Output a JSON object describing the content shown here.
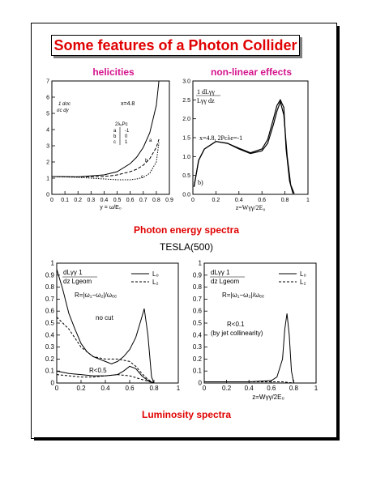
{
  "title": "Some features of a Photon Collider",
  "sections": {
    "helicities": "helicities",
    "nonlinear": "non-linear effects",
    "photon_spectra": "Photon energy spectra",
    "luminosity_spectra": "Luminosity spectra"
  },
  "tesla": "TESLA(500)",
  "colors": {
    "title": "#e00000",
    "section": "#d4148c",
    "caption": "#e00000"
  },
  "chart_data": [
    {
      "type": "line",
      "xlabel": "y = ω/E₀",
      "ylabel": "1/σc dσc/dy",
      "xlim": [
        0,
        0.9
      ],
      "ylim": [
        0,
        7
      ],
      "xticks": [
        "0",
        "0.1",
        "0.2",
        "0.3",
        "0.4",
        "0.5",
        "0.6",
        "0.7",
        "0.8",
        "0.9"
      ],
      "yticks": [
        "0",
        "1",
        "2",
        "3",
        "4",
        "5",
        "6",
        "7"
      ],
      "annotation": "x=4.8",
      "legend_header": "2λₑPc",
      "legend_rows": [
        [
          "a",
          "-1"
        ],
        [
          "b",
          "0"
        ],
        [
          "c",
          "1"
        ]
      ],
      "series": [
        {
          "name": "a",
          "x": [
            0,
            0.2,
            0.4,
            0.5,
            0.6,
            0.65,
            0.7,
            0.75,
            0.8,
            0.82
          ],
          "y": [
            1.1,
            1.08,
            1.2,
            1.4,
            1.9,
            2.3,
            2.9,
            3.8,
            5.5,
            7.0
          ]
        },
        {
          "name": "b",
          "x": [
            0,
            0.2,
            0.4,
            0.5,
            0.6,
            0.65,
            0.7,
            0.75,
            0.8,
            0.82
          ],
          "y": [
            1.1,
            1.08,
            1.1,
            1.2,
            1.4,
            1.55,
            1.8,
            2.2,
            2.9,
            3.4
          ]
        },
        {
          "name": "c",
          "x": [
            0,
            0.2,
            0.4,
            0.5,
            0.6,
            0.65,
            0.7,
            0.75,
            0.8,
            0.82
          ],
          "y": [
            1.1,
            1.05,
            0.95,
            0.9,
            0.9,
            0.95,
            1.05,
            1.3,
            2.0,
            3.2
          ]
        }
      ]
    },
    {
      "type": "line",
      "xlabel": "z=Wγγ/2E₀",
      "ylabel": "1/Lγγ dLγγ/dz",
      "xlim": [
        0,
        1
      ],
      "ylim": [
        0,
        3
      ],
      "xticks": [
        "0",
        "0.2",
        "0.4",
        "0.6",
        "0.8",
        "1"
      ],
      "yticks": [
        "0.0",
        "0.5",
        "1.0",
        "1.5",
        "2.0",
        "2.5",
        "3.0"
      ],
      "annotation": "x=4.8, 2Pcλe=-1",
      "panel_label": "b)",
      "series": [
        {
          "x": [
            0.01,
            0.05,
            0.1,
            0.2,
            0.3,
            0.4,
            0.5,
            0.6,
            0.65,
            0.7,
            0.73,
            0.76,
            0.79,
            0.82,
            0.85,
            0.88
          ],
          "y": [
            0.2,
            0.9,
            1.2,
            1.4,
            1.35,
            1.2,
            1.08,
            1.15,
            1.35,
            1.85,
            2.2,
            2.45,
            2.1,
            1.0,
            0.25,
            0.02
          ]
        },
        {
          "x": [
            0.01,
            0.05,
            0.1,
            0.2,
            0.3,
            0.4,
            0.5,
            0.6,
            0.65,
            0.7,
            0.73,
            0.76,
            0.79,
            0.81,
            0.84,
            0.87
          ],
          "y": [
            0.2,
            0.9,
            1.2,
            1.4,
            1.35,
            1.22,
            1.1,
            1.2,
            1.45,
            2.0,
            2.35,
            2.5,
            2.3,
            1.2,
            0.35,
            0.02
          ]
        }
      ]
    },
    {
      "type": "line",
      "xlim": [
        0,
        1
      ],
      "ylim": [
        0,
        1
      ],
      "xticks": [
        "0",
        "0.2",
        "0.4",
        "0.6",
        "0.8",
        "1"
      ],
      "yticks": [
        "0",
        "0.1",
        "0.2",
        "0.3",
        "0.4",
        "0.5",
        "0.6",
        "0.7",
        "0.8",
        "0.9",
        "1"
      ],
      "ylabel": "dLγγ/dz · 1/Lgeom",
      "legend": [
        "L₀",
        "L₂"
      ],
      "r_def": "R=|ω₁−ω₂|/ωₑₑ",
      "annotations": [
        "no cut",
        "R<0.5"
      ],
      "series": [
        {
          "name": "L₀ no cut",
          "x": [
            0,
            0.05,
            0.1,
            0.15,
            0.2,
            0.25,
            0.3,
            0.35,
            0.4,
            0.45,
            0.5,
            0.55,
            0.6,
            0.65,
            0.7,
            0.72,
            0.75,
            0.78,
            0.8
          ],
          "y": [
            0.95,
            0.78,
            0.58,
            0.45,
            0.33,
            0.26,
            0.22,
            0.2,
            0.18,
            0.16,
            0.18,
            0.22,
            0.28,
            0.38,
            0.55,
            0.62,
            0.4,
            0.05,
            0.0
          ]
        },
        {
          "name": "L₂ no cut",
          "x": [
            0,
            0.1,
            0.2,
            0.3,
            0.4,
            0.5,
            0.6,
            0.65,
            0.7,
            0.75,
            0.8
          ],
          "y": [
            0.55,
            0.45,
            0.3,
            0.22,
            0.2,
            0.2,
            0.18,
            0.14,
            0.08,
            0.03,
            0.0
          ]
        },
        {
          "name": "L₀ R<0.5",
          "x": [
            0,
            0.1,
            0.2,
            0.3,
            0.4,
            0.5,
            0.55,
            0.6,
            0.65,
            0.7,
            0.75,
            0.8
          ],
          "y": [
            0.1,
            0.08,
            0.07,
            0.06,
            0.06,
            0.07,
            0.1,
            0.14,
            0.12,
            0.06,
            0.02,
            0.0
          ]
        },
        {
          "name": "L₂ R<0.5",
          "x": [
            0,
            0.1,
            0.2,
            0.3,
            0.4,
            0.5,
            0.6,
            0.7,
            0.8
          ],
          "y": [
            0.07,
            0.06,
            0.05,
            0.05,
            0.06,
            0.07,
            0.06,
            0.03,
            0.0
          ]
        }
      ]
    },
    {
      "type": "line",
      "xlabel": "z=Wγγ/2E₀",
      "xlim": [
        0,
        1
      ],
      "ylim": [
        0,
        1
      ],
      "xticks": [
        "0",
        "0.2",
        "0.4",
        "0.6",
        "0.8",
        "1"
      ],
      "yticks": [
        "0",
        "0.1",
        "0.2",
        "0.3",
        "0.4",
        "0.5",
        "0.6",
        "0.7",
        "0.8",
        "0.9",
        "1"
      ],
      "ylabel": "dLγγ/dz · 1/Lgeom",
      "legend": [
        "L₀",
        "L₂"
      ],
      "r_def": "R=|ω₁−ω₂|/ωₑₑ",
      "annotations": [
        "R<0.1",
        "(by jet collinearity)"
      ],
      "series": [
        {
          "name": "L₀",
          "x": [
            0,
            0.2,
            0.4,
            0.6,
            0.65,
            0.7,
            0.72,
            0.74,
            0.76,
            0.78,
            0.8
          ],
          "y": [
            0.01,
            0.01,
            0.01,
            0.02,
            0.05,
            0.2,
            0.45,
            0.58,
            0.4,
            0.1,
            0.0
          ]
        },
        {
          "name": "L₂",
          "x": [
            0,
            0.2,
            0.4,
            0.6,
            0.7,
            0.75,
            0.8
          ],
          "y": [
            0.01,
            0.01,
            0.01,
            0.01,
            0.01,
            0.005,
            0.0
          ]
        }
      ]
    }
  ]
}
